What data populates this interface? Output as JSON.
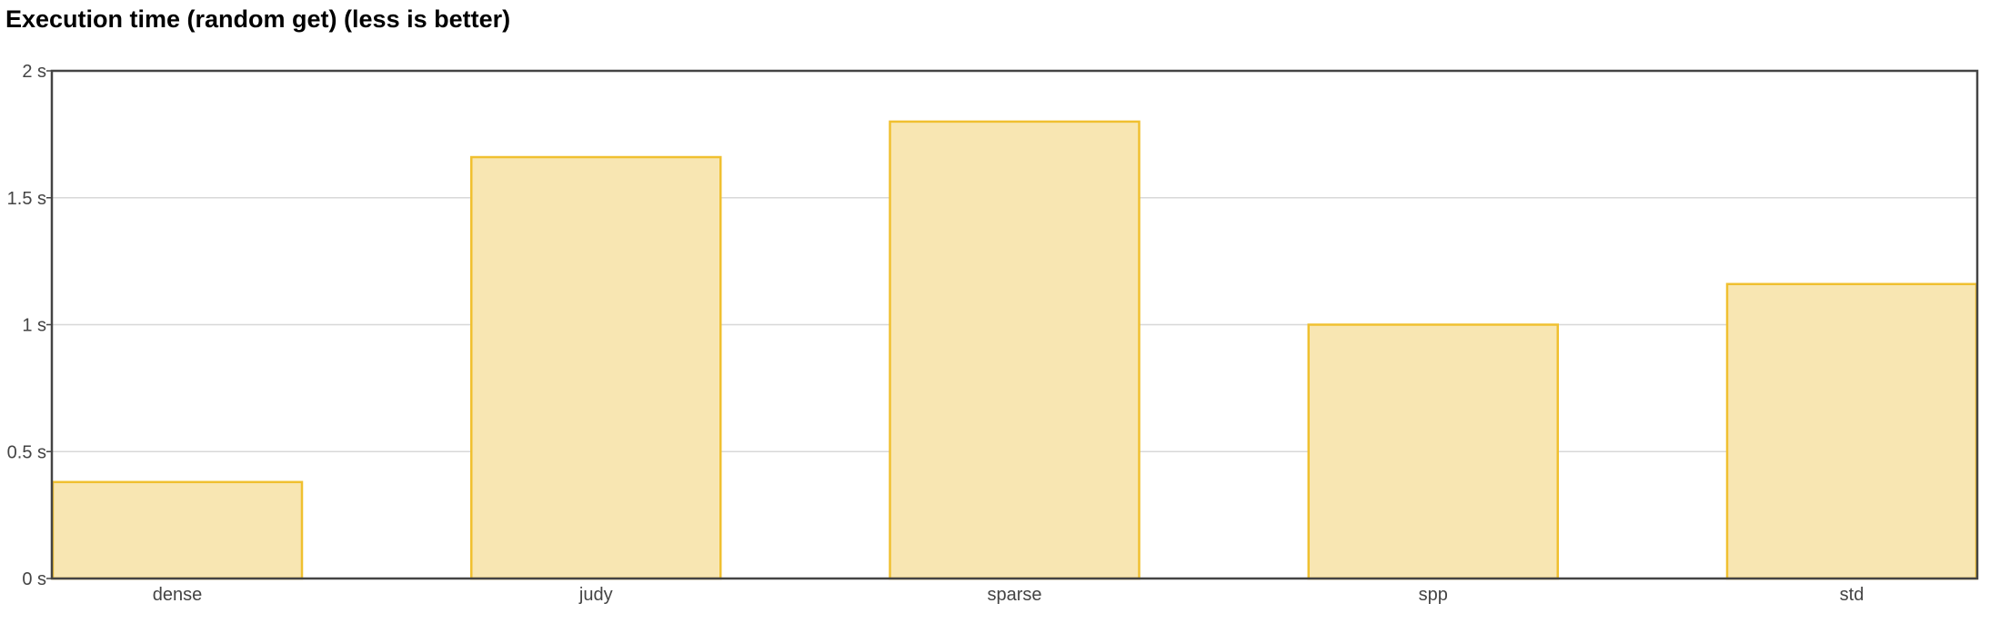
{
  "chart_data": {
    "type": "bar",
    "title": "Execution time (random get) (less is better)",
    "categories": [
      "dense",
      "judy",
      "sparse",
      "spp",
      "std"
    ],
    "values": [
      0.38,
      1.66,
      1.8,
      1.0,
      1.16
    ],
    "y_ticks": [
      0,
      0.5,
      1,
      1.5,
      2
    ],
    "y_unit": "s",
    "ylim": [
      0,
      2
    ],
    "grid": true,
    "legend": "none",
    "colors": {
      "bar_fill": "#f8e6b2",
      "bar_stroke": "#f0c030",
      "grid": "#d8d8d8",
      "frame": "#444444"
    }
  }
}
